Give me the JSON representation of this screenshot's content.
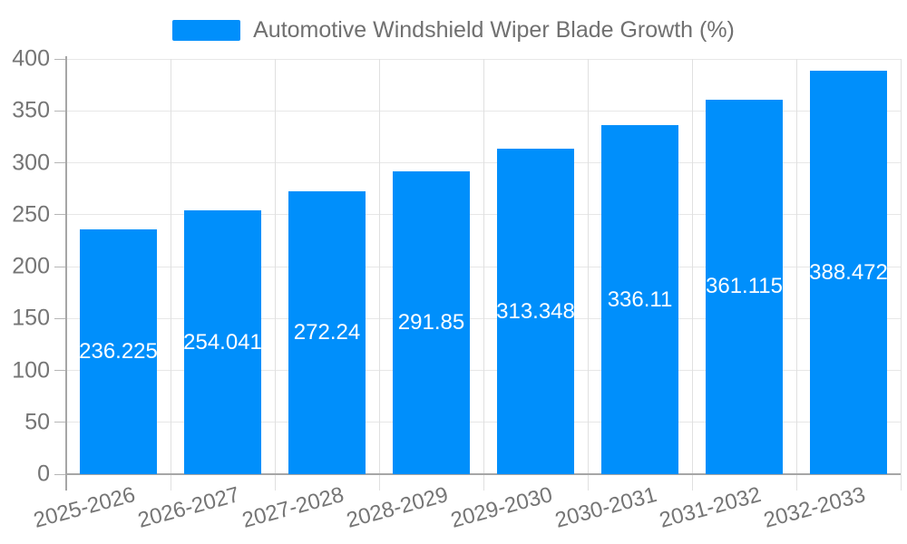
{
  "legend": {
    "label": "Automotive Windshield Wiper Blade Growth (%)",
    "swatch_color": "#008FFB"
  },
  "chart_data": {
    "type": "bar",
    "title": "Automotive Windshield Wiper Blade Growth (%)",
    "categories": [
      "2025-2026",
      "2026-2027",
      "2027-2028",
      "2028-2029",
      "2029-2030",
      "2030-2031",
      "2031-2032",
      "2032-2033"
    ],
    "series": [
      {
        "name": "Automotive Windshield Wiper Blade Growth (%)",
        "values": [
          236.225,
          254.041,
          272.24,
          291.85,
          313.348,
          336.11,
          361.115,
          388.472
        ]
      }
    ],
    "value_labels": [
      "236.225",
      "254.041",
      "272.24",
      "291.85",
      "313.348",
      "336.11",
      "361.115",
      "388.472"
    ],
    "xlabel": "",
    "ylabel": "",
    "ylim": [
      0,
      400
    ],
    "ytick_labels": [
      "0",
      "50",
      "100",
      "150",
      "200",
      "250",
      "300",
      "350",
      "400"
    ],
    "grid": true,
    "legend_position": "top",
    "colors": {
      "bar": "#008FFB",
      "value_label": "#ffffff",
      "axis_text": "#757575",
      "grid_h": "#e7e7e7",
      "grid_v": "#e0e0e0",
      "axis_line": "#a6a6a6",
      "tick": "#b6b6b6"
    }
  }
}
